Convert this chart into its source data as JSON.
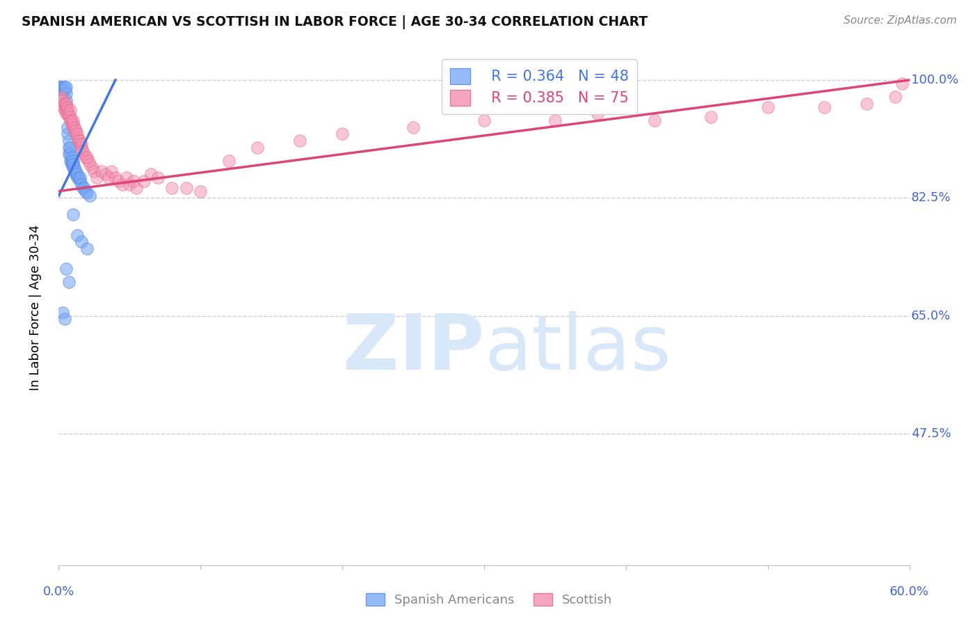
{
  "title": "SPANISH AMERICAN VS SCOTTISH IN LABOR FORCE | AGE 30-34 CORRELATION CHART",
  "source": "Source: ZipAtlas.com",
  "ylabel": "In Labor Force | Age 30-34",
  "xlim": [
    0.0,
    0.6
  ],
  "ylim": [
    0.28,
    1.045
  ],
  "yticks": [
    0.475,
    0.65,
    0.825,
    1.0
  ],
  "ytick_labels": [
    "47.5%",
    "65.0%",
    "82.5%",
    "100.0%"
  ],
  "xticks": [
    0.0,
    0.1,
    0.2,
    0.3,
    0.4,
    0.5,
    0.6
  ],
  "blue_R": 0.364,
  "blue_N": 48,
  "pink_R": 0.385,
  "pink_N": 75,
  "blue_color": "#7BAAF7",
  "blue_edge_color": "#5588DD",
  "pink_color": "#F48FB1",
  "pink_edge_color": "#DD6688",
  "line_blue_color": "#4477DD",
  "line_pink_color": "#DD4477",
  "axis_label_color": "#4466CC",
  "grid_color": "#CCCCDD",
  "background_color": "#FFFFFF",
  "watermark_color": "#D8E8F8",
  "legend_label_blue": "Spanish Americans",
  "legend_label_pink": "Scottish",
  "blue_line_x0": 0.0,
  "blue_line_y0": 0.828,
  "blue_line_x1": 0.04,
  "blue_line_y1": 1.0,
  "pink_line_x0": 0.0,
  "pink_line_y0": 0.835,
  "pink_line_x1": 0.6,
  "pink_line_y1": 1.0,
  "blue_scatter_x": [
    0.001,
    0.002,
    0.002,
    0.003,
    0.003,
    0.004,
    0.004,
    0.005,
    0.005,
    0.005,
    0.006,
    0.006,
    0.007,
    0.007,
    0.007,
    0.008,
    0.008,
    0.008,
    0.009,
    0.009,
    0.009,
    0.01,
    0.01,
    0.01,
    0.01,
    0.011,
    0.011,
    0.012,
    0.012,
    0.013,
    0.013,
    0.014,
    0.015,
    0.015,
    0.016,
    0.017,
    0.018,
    0.019,
    0.02,
    0.022,
    0.003,
    0.004,
    0.005,
    0.007,
    0.01,
    0.013,
    0.016,
    0.02
  ],
  "blue_scatter_y": [
    0.99,
    0.985,
    0.99,
    0.985,
    0.99,
    0.985,
    0.99,
    0.97,
    0.98,
    0.99,
    0.92,
    0.93,
    0.89,
    0.9,
    0.91,
    0.88,
    0.89,
    0.9,
    0.875,
    0.88,
    0.885,
    0.87,
    0.875,
    0.88,
    0.875,
    0.865,
    0.87,
    0.86,
    0.865,
    0.855,
    0.86,
    0.855,
    0.85,
    0.855,
    0.845,
    0.84,
    0.84,
    0.835,
    0.832,
    0.828,
    0.655,
    0.645,
    0.72,
    0.7,
    0.8,
    0.77,
    0.76,
    0.75
  ],
  "pink_scatter_x": [
    0.001,
    0.002,
    0.002,
    0.003,
    0.003,
    0.004,
    0.004,
    0.005,
    0.005,
    0.005,
    0.006,
    0.006,
    0.006,
    0.007,
    0.007,
    0.008,
    0.008,
    0.008,
    0.009,
    0.009,
    0.01,
    0.01,
    0.01,
    0.011,
    0.011,
    0.012,
    0.012,
    0.013,
    0.013,
    0.014,
    0.015,
    0.015,
    0.016,
    0.016,
    0.017,
    0.018,
    0.019,
    0.02,
    0.021,
    0.022,
    0.024,
    0.025,
    0.027,
    0.03,
    0.033,
    0.035,
    0.037,
    0.04,
    0.042,
    0.045,
    0.048,
    0.05,
    0.053,
    0.055,
    0.06,
    0.065,
    0.07,
    0.08,
    0.09,
    0.1,
    0.12,
    0.14,
    0.17,
    0.2,
    0.25,
    0.3,
    0.35,
    0.38,
    0.42,
    0.46,
    0.5,
    0.54,
    0.57,
    0.59,
    0.595
  ],
  "pink_scatter_y": [
    0.97,
    0.965,
    0.975,
    0.96,
    0.97,
    0.955,
    0.965,
    0.95,
    0.96,
    0.965,
    0.95,
    0.955,
    0.96,
    0.945,
    0.95,
    0.94,
    0.945,
    0.955,
    0.935,
    0.94,
    0.93,
    0.935,
    0.94,
    0.925,
    0.93,
    0.92,
    0.925,
    0.915,
    0.92,
    0.91,
    0.905,
    0.91,
    0.9,
    0.905,
    0.895,
    0.89,
    0.885,
    0.885,
    0.88,
    0.875,
    0.87,
    0.865,
    0.855,
    0.865,
    0.86,
    0.855,
    0.865,
    0.855,
    0.85,
    0.845,
    0.855,
    0.845,
    0.85,
    0.84,
    0.85,
    0.86,
    0.855,
    0.84,
    0.84,
    0.835,
    0.88,
    0.9,
    0.91,
    0.92,
    0.93,
    0.94,
    0.94,
    0.95,
    0.94,
    0.945,
    0.96,
    0.96,
    0.965,
    0.975,
    0.995
  ]
}
